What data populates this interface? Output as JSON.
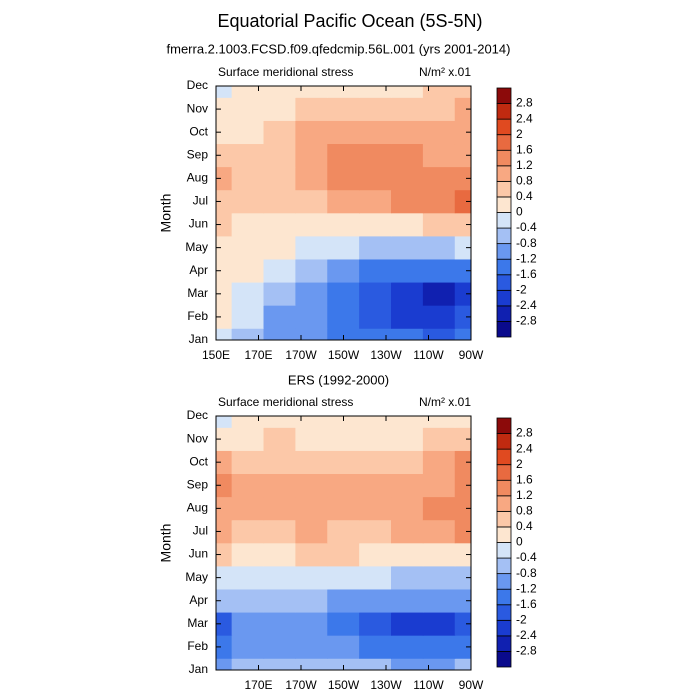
{
  "title": "Equatorial Pacific Ocean (5S-5N)",
  "chart_data": [
    {
      "type": "contour",
      "title": "fmerra.2.1003.FCSD.f09.qfedcmip.56L.001 (yrs 2001-2014)",
      "left_label": "Surface meridional stress",
      "right_label": "N/m² x.01",
      "ylabel": "Month",
      "categories": [
        "Jan",
        "Feb",
        "Mar",
        "Apr",
        "May",
        "Jun",
        "Jul",
        "Aug",
        "Sep",
        "Oct",
        "Nov",
        "Dec"
      ],
      "x": [
        150,
        165,
        180,
        195,
        210,
        225,
        240,
        255,
        270
      ],
      "xlim": [
        150,
        270
      ],
      "xticks": [
        {
          "value": 150,
          "label": "150E"
        },
        {
          "value": 170,
          "label": "170E"
        },
        {
          "value": 190,
          "label": "170W"
        },
        {
          "value": 210,
          "label": "150W"
        },
        {
          "value": 230,
          "label": "130W"
        },
        {
          "value": 250,
          "label": "110W"
        },
        {
          "value": 270,
          "label": "90W"
        }
      ],
      "levels": [
        -2.8,
        -2.4,
        -2,
        -1.6,
        -1.2,
        -0.8,
        -0.4,
        0,
        0.4,
        0.8,
        1.2,
        1.6,
        2,
        2.4,
        2.8
      ],
      "colors": [
        "#0a0a8c",
        "#1020b0",
        "#1a3cd0",
        "#2a5ae0",
        "#3c78ea",
        "#6a98f0",
        "#a4c0f4",
        "#d4e4f8",
        "#fde6d0",
        "#fcc8a8",
        "#f8a882",
        "#f08a60",
        "#e86a40",
        "#e04a20",
        "#c02a10",
        "#8c0a0a"
      ],
      "values": [
        [
          -0.2,
          -0.5,
          -0.9,
          -1.0,
          -1.4,
          -1.5,
          -1.6,
          -1.8,
          -1.6
        ],
        [
          0.1,
          -0.4,
          -0.9,
          -1.1,
          -1.5,
          -1.9,
          -2.1,
          -2.2,
          -1.8
        ],
        [
          0.1,
          -0.3,
          -0.8,
          -1.0,
          -1.3,
          -1.8,
          -2.3,
          -2.6,
          -2.4
        ],
        [
          0.2,
          0.1,
          -0.4,
          -0.7,
          -1.0,
          -1.3,
          -1.5,
          -1.6,
          -1.4
        ],
        [
          0.3,
          0.2,
          0.0,
          -0.3,
          -0.4,
          -0.5,
          -0.5,
          -0.5,
          -0.3
        ],
        [
          0.5,
          0.3,
          0.2,
          0.1,
          0.1,
          0.1,
          0.3,
          0.4,
          0.5
        ],
        [
          0.6,
          0.4,
          0.4,
          0.6,
          0.9,
          1.1,
          1.2,
          1.4,
          1.6
        ],
        [
          0.8,
          0.4,
          0.5,
          0.8,
          1.3,
          1.4,
          1.3,
          1.3,
          1.2
        ],
        [
          0.5,
          0.4,
          0.6,
          0.9,
          1.3,
          1.3,
          1.2,
          1.1,
          1.0
        ],
        [
          0.3,
          0.3,
          0.6,
          0.8,
          0.9,
          1.0,
          1.0,
          0.9,
          0.9
        ],
        [
          0.3,
          0.3,
          0.3,
          0.4,
          0.4,
          0.5,
          0.5,
          0.6,
          0.8
        ],
        [
          -0.1,
          0.2,
          0.2,
          0.2,
          0.3,
          0.3,
          0.3,
          0.4,
          0.5
        ]
      ]
    },
    {
      "type": "contour",
      "title": "ERS (1992-2000)",
      "left_label": "Surface meridional stress",
      "right_label": "N/m² x.01",
      "ylabel": "Month",
      "categories": [
        "Jan",
        "Feb",
        "Mar",
        "Apr",
        "May",
        "Jun",
        "Jul",
        "Aug",
        "Sep",
        "Oct",
        "Nov",
        "Dec"
      ],
      "x": [
        150,
        165,
        180,
        195,
        210,
        225,
        240,
        255,
        270
      ],
      "xlim": [
        150,
        270
      ],
      "xticks": [
        {
          "value": 170,
          "label": "170E"
        },
        {
          "value": 190,
          "label": "170W"
        },
        {
          "value": 210,
          "label": "150W"
        },
        {
          "value": 230,
          "label": "130W"
        },
        {
          "value": 250,
          "label": "110W"
        },
        {
          "value": 270,
          "label": "90W"
        }
      ],
      "levels": [
        -2.8,
        -2.4,
        -2,
        -1.6,
        -1.2,
        -0.8,
        -0.4,
        0,
        0.4,
        0.8,
        1.2,
        1.6,
        2,
        2.4,
        2.8
      ],
      "colors": [
        "#0a0a8c",
        "#1020b0",
        "#1a3cd0",
        "#2a5ae0",
        "#3c78ea",
        "#6a98f0",
        "#a4c0f4",
        "#d4e4f8",
        "#fde6d0",
        "#fcc8a8",
        "#f8a882",
        "#f08a60",
        "#e86a40",
        "#e04a20",
        "#c02a10",
        "#8c0a0a"
      ],
      "values": [
        [
          -1.0,
          -0.7,
          -0.5,
          -0.6,
          -0.6,
          -0.8,
          -1.0,
          -0.9,
          -0.8
        ],
        [
          -1.5,
          -1.0,
          -0.9,
          -1.0,
          -1.2,
          -1.5,
          -1.6,
          -1.6,
          -1.4
        ],
        [
          -1.7,
          -1.2,
          -1.0,
          -1.2,
          -1.5,
          -1.8,
          -2.1,
          -2.2,
          -1.8
        ],
        [
          -0.8,
          -0.7,
          -0.6,
          -0.8,
          -1.0,
          -1.1,
          -1.2,
          -1.1,
          -0.9
        ],
        [
          -0.3,
          -0.2,
          -0.3,
          -0.3,
          -0.4,
          -0.4,
          -0.7,
          -0.6,
          -0.5
        ],
        [
          0.5,
          0.3,
          0.3,
          0.4,
          0.4,
          0.3,
          0.2,
          0.2,
          0.3
        ],
        [
          1.0,
          0.7,
          0.7,
          0.8,
          0.7,
          0.6,
          0.8,
          1.0,
          1.4
        ],
        [
          1.1,
          0.8,
          0.8,
          0.9,
          0.8,
          0.8,
          0.9,
          1.2,
          1.3
        ],
        [
          1.2,
          0.8,
          0.8,
          0.9,
          0.9,
          0.8,
          0.8,
          0.9,
          1.2
        ],
        [
          0.8,
          0.7,
          0.6,
          0.7,
          0.6,
          0.6,
          0.7,
          0.8,
          1.2
        ],
        [
          0.3,
          0.3,
          0.4,
          0.3,
          0.3,
          0.3,
          0.3,
          0.4,
          0.6
        ],
        [
          -0.1,
          0.0,
          0.1,
          0.1,
          0.1,
          0.1,
          0.2,
          0.1,
          0.2
        ]
      ]
    }
  ]
}
